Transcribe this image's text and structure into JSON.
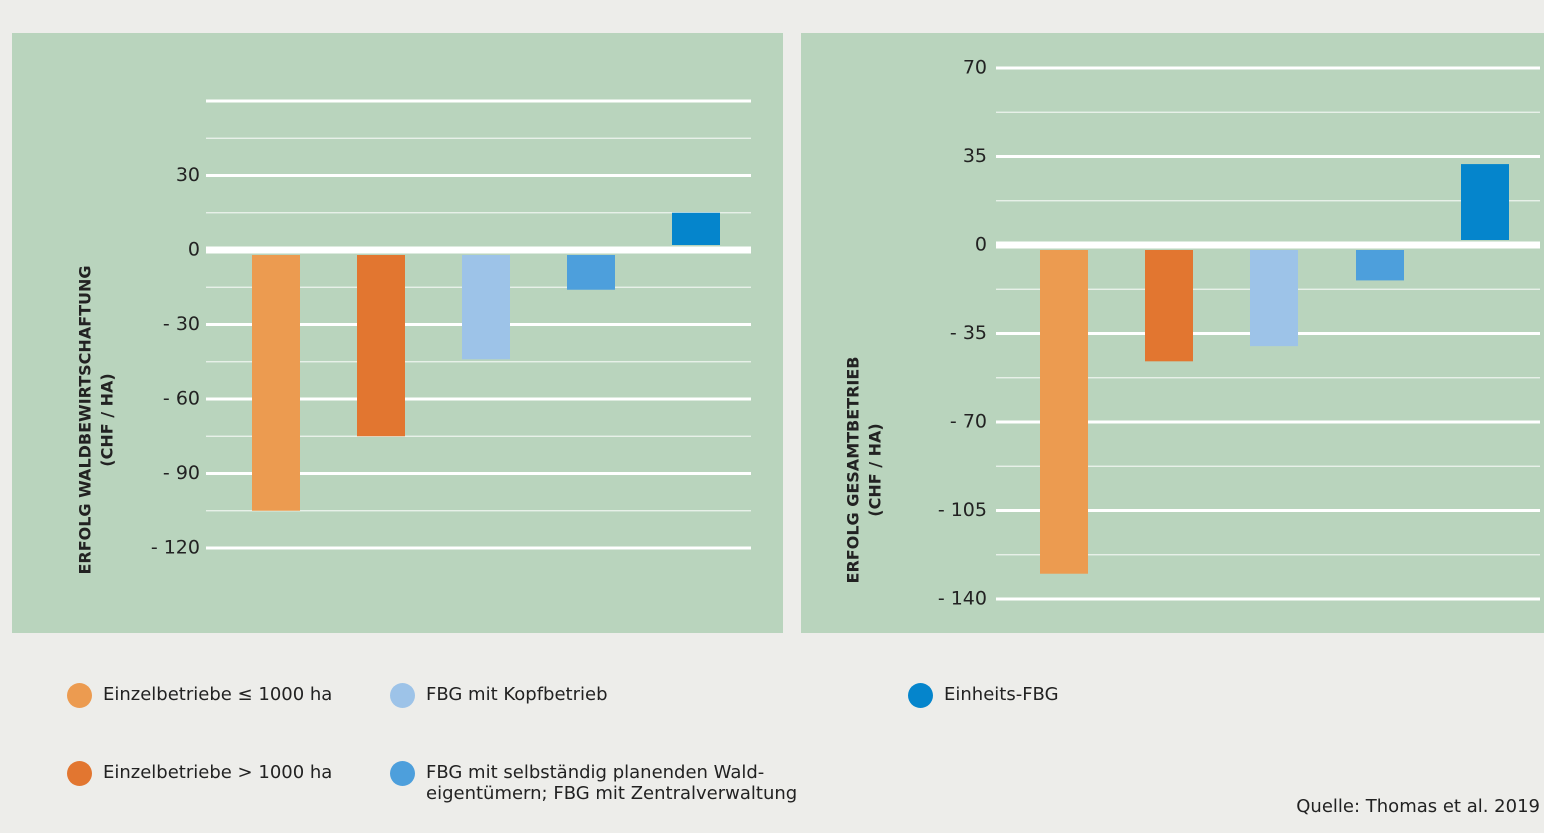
{
  "chart_data": [
    {
      "type": "bar",
      "ylabel": [
        "ERFOLG WALDBEWIRTSCHAFTUNG",
        "(CHF / HA)"
      ],
      "values": [
        -105,
        -75,
        -44,
        -16,
        15
      ],
      "ylim": [
        -120,
        60
      ],
      "yticks": [
        30,
        0,
        {
          "value": -30,
          "label": "- 30"
        },
        {
          "value": -60,
          "label": "- 60"
        },
        {
          "value": -90,
          "label": "- 90"
        },
        {
          "value": -120,
          "label": "- 120"
        }
      ],
      "grid": true
    },
    {
      "type": "bar",
      "ylabel": [
        "ERFOLG GESAMTBETRIEB",
        "(CHF / HA)"
      ],
      "values": [
        -130,
        -46,
        -40,
        -14,
        32
      ],
      "ylim": [
        -140,
        70
      ],
      "yticks": [
        70,
        35,
        0,
        {
          "value": -35,
          "label": "- 35"
        },
        {
          "value": -70,
          "label": "- 70"
        },
        {
          "value": -105,
          "label": "- 105"
        },
        {
          "value": -140,
          "label": "- 140"
        }
      ],
      "grid": true
    }
  ],
  "legend": [
    {
      "name": "Einzelbetriebe ≤ 1000 ha",
      "color": "#ec9b50"
    },
    {
      "name": "Einzelbetriebe > 1000 ha",
      "color": "#e27630"
    },
    {
      "name": "FBG mit Kopfbetrieb",
      "color": "#9dc3e8"
    },
    {
      "name": "FBG mit selbständig planenden Wald-\neigentümern; FBG mit Zentralverwaltung",
      "color": "#4d9fdc"
    },
    {
      "name": "Einheits-FBG",
      "color": "#0585cc"
    }
  ],
  "source": "Quelle: Thomas et al. 2019"
}
